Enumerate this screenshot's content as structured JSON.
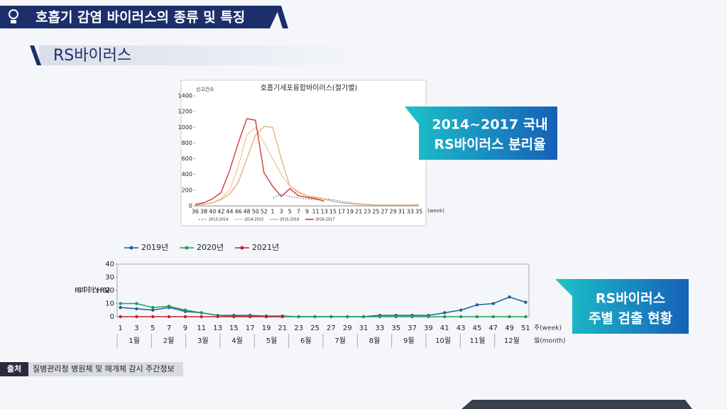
{
  "header": {
    "title": "호흡기 감염 바이러스의 종류 및 특징",
    "subtitle": "RS바이러스"
  },
  "callouts": [
    "2014~2017 국내",
    "RS바이러스 분리율",
    "RS바이러스",
    "주별 검출 현황"
  ],
  "source": {
    "label": "출처",
    "text": "질병관리청 병원체 및 매개체 감시 주간정보"
  },
  "chart_data": [
    {
      "type": "line",
      "title": "호흡기세포융합바이러스(절기별)",
      "ylabel": "신고건수",
      "xlabel": "(week)",
      "categories": [
        "36",
        "38",
        "40",
        "42",
        "44",
        "46",
        "48",
        "50",
        "52",
        "1",
        "3",
        "5",
        "7",
        "9",
        "11",
        "13",
        "15",
        "17",
        "19",
        "21",
        "23",
        "25",
        "27",
        "29",
        "31",
        "33",
        "35"
      ],
      "ylim": [
        0,
        1400
      ],
      "yticks": [
        0,
        200,
        400,
        600,
        800,
        1000,
        1200,
        1400
      ],
      "grid": false,
      "legend": "bottom",
      "series": [
        {
          "name": "2013-2014",
          "color": "#7b8fc9",
          "style": "dotted",
          "values": [
            null,
            null,
            null,
            null,
            null,
            null,
            null,
            null,
            null,
            100,
            150,
            120,
            100,
            90,
            80,
            90,
            80,
            60,
            40,
            30,
            20,
            15,
            10,
            10,
            10,
            10,
            10
          ]
        },
        {
          "name": "2014-2015",
          "color": "#f3c89a",
          "style": "solid",
          "values": [
            10,
            20,
            40,
            90,
            200,
            500,
            900,
            1000,
            800,
            600,
            400,
            250,
            180,
            130,
            100,
            80,
            60,
            40,
            30,
            20,
            15,
            10,
            10,
            10,
            10,
            10,
            10
          ]
        },
        {
          "name": "2015-2016",
          "color": "#d9b27c",
          "style": "solid",
          "values": [
            10,
            20,
            40,
            80,
            150,
            300,
            600,
            900,
            1010,
            1000,
            600,
            250,
            170,
            130,
            110,
            90,
            60,
            40,
            30,
            20,
            15,
            10,
            10,
            10,
            10,
            10,
            20
          ]
        },
        {
          "name": "2016-2017",
          "color": "#d22b2b",
          "style": "solid",
          "values": [
            20,
            40,
            90,
            170,
            450,
            800,
            1110,
            1090,
            420,
            250,
            120,
            220,
            130,
            110,
            90,
            60,
            null,
            null,
            null,
            null,
            null,
            null,
            null,
            null,
            null,
            null,
            null
          ]
        }
      ]
    },
    {
      "type": "line",
      "ylabel": "RS 바이러스 (HRSV)",
      "xlabel": "주(week)",
      "xlabel2": "월(month)",
      "categories": [
        "1",
        "3",
        "5",
        "7",
        "9",
        "11",
        "13",
        "15",
        "17",
        "19",
        "21",
        "23",
        "25",
        "27",
        "29",
        "31",
        "33",
        "35",
        "37",
        "39",
        "41",
        "43",
        "45",
        "47",
        "49",
        "51"
      ],
      "months": [
        "1월",
        "2월",
        "3월",
        "4월",
        "5월",
        "6월",
        "7월",
        "8월",
        "9월",
        "10월",
        "11월",
        "12월"
      ],
      "ylim": [
        0,
        40
      ],
      "yticks": [
        0,
        10,
        20,
        30,
        40
      ],
      "grid": false,
      "legend": "top",
      "markers": true,
      "series": [
        {
          "name": "2019년",
          "color": "#1f5f99",
          "values": [
            7,
            6,
            5,
            7,
            4,
            3,
            1,
            1,
            1,
            0.5,
            0.5,
            0,
            0,
            0,
            0,
            0,
            1,
            1,
            1,
            1,
            3,
            5,
            9,
            10,
            15,
            11
          ]
        },
        {
          "name": "2020년",
          "color": "#1e9e5a",
          "values": [
            10,
            10,
            7,
            8,
            5,
            3,
            1,
            0.5,
            0.5,
            0,
            0,
            0,
            0,
            0,
            0,
            0,
            0,
            0,
            0,
            0,
            0,
            0,
            0,
            0,
            0,
            0
          ]
        },
        {
          "name": "2021년",
          "color": "#c8202b",
          "values": [
            0,
            0,
            0,
            0,
            0,
            0,
            0,
            0,
            0,
            0,
            0,
            null,
            null,
            null,
            null,
            null,
            null,
            null,
            null,
            null,
            null,
            null,
            null,
            null,
            null,
            null
          ]
        }
      ]
    }
  ]
}
